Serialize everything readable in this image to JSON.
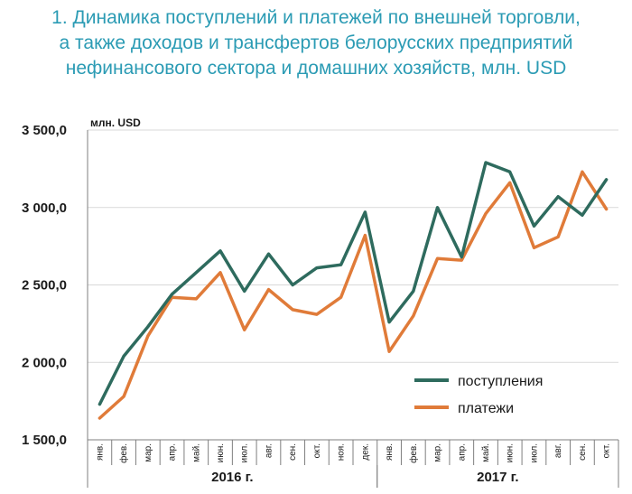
{
  "title_lines": [
    "1. Динамика поступлений и платежей по внешней торговли,",
    "а также доходов и трансфертов белорусских предприятий",
    "нефинансового сектора и домашних хозяйств, млн. USD"
  ],
  "colors": {
    "title": "#2b9bb4",
    "postupleniya": "#2e6b5e",
    "platezhi": "#e07b39",
    "grid": "#d9d9d9"
  },
  "chart_data": {
    "type": "line",
    "unit_label": "млн. USD",
    "categories": [
      "янв.",
      "фев.",
      "мар.",
      "апр.",
      "май.",
      "июн.",
      "июл.",
      "авг.",
      "сен.",
      "окт.",
      "ноя.",
      "дек.",
      "янв.",
      "фев.",
      "мар.",
      "апр.",
      "май.",
      "июн.",
      "июл.",
      "авг.",
      "сен.",
      "окт."
    ],
    "year_groups": [
      {
        "label": "2016 г.",
        "start": 0,
        "end": 11
      },
      {
        "label": "2017 г.",
        "start": 12,
        "end": 21
      }
    ],
    "y_ticks": [
      "1 500,0",
      "2 000,0",
      "2 500,0",
      "3 000,0",
      "3 500,0"
    ],
    "ylim": [
      1500,
      3500
    ],
    "grid": "horizontal",
    "legend_position": "bottom-right",
    "series": [
      {
        "name": "поступления",
        "values": [
          1730,
          2040,
          2230,
          2440,
          2580,
          2720,
          2460,
          2700,
          2500,
          2610,
          2630,
          2970,
          2260,
          2460,
          3000,
          2680,
          3290,
          3230,
          2880,
          3070,
          2950,
          3180
        ]
      },
      {
        "name": "платежи",
        "values": [
          1640,
          1780,
          2170,
          2420,
          2410,
          2580,
          2210,
          2470,
          2340,
          2310,
          2420,
          2820,
          2070,
          2300,
          2670,
          2660,
          2960,
          3160,
          2740,
          2810,
          3230,
          2990
        ]
      }
    ]
  }
}
